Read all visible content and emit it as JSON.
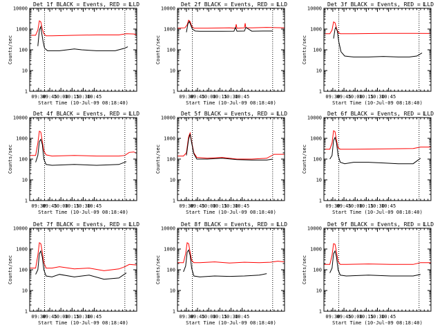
{
  "chart_data": [
    {
      "type": "line",
      "title": "Det 1f BLACK = Events, RED = LLD",
      "corner_mark": "L",
      "xlabel": "Start Time (10-Jul-09 08:18:40)",
      "ylabel": "Counts/sec",
      "yscale": "log",
      "ylim": [
        1,
        10000
      ],
      "xlim": [
        0,
        144
      ],
      "x_tick_labels": [
        "09:30",
        "09:45",
        "10:00",
        "10:15",
        "10:30",
        "10:45"
      ],
      "x_tick_values": [
        12,
        27,
        42,
        57,
        72,
        87
      ],
      "y_tick_labels": [
        "1",
        "10",
        "100",
        "1000",
        "10000"
      ],
      "y_tick_values": [
        1,
        10,
        100,
        1000,
        10000
      ],
      "vlines": [
        20,
        128
      ],
      "series": [
        {
          "color": "#ff0000",
          "x": [
            0,
            8,
            11,
            13,
            15,
            17,
            19,
            22,
            30,
            60,
            90,
            120,
            130,
            140,
            144
          ],
          "y": [
            500,
            500,
            900,
            2500,
            2200,
            1000,
            600,
            470,
            470,
            500,
            520,
            520,
            600,
            580,
            520
          ]
        },
        {
          "color": "#000000",
          "x": [
            11,
            13,
            15,
            16,
            18,
            20,
            24,
            40,
            60,
            70,
            90,
            115,
            128,
            132
          ],
          "y": [
            150,
            900,
            1300,
            700,
            250,
            120,
            90,
            90,
            110,
            100,
            90,
            90,
            120,
            140
          ]
        }
      ]
    },
    {
      "type": "line",
      "title": "Det 2f BLACK = Events, RED = LLD",
      "corner_mark": "L",
      "xlabel": "Start Time (10-Jul-09 08:18:40)",
      "ylabel": "Counts/sec",
      "yscale": "log",
      "ylim": [
        1,
        10000
      ],
      "xlim": [
        0,
        144
      ],
      "x_tick_labels": [
        "09:30",
        "09:45",
        "10:00",
        "10:15",
        "10:30",
        "10:45"
      ],
      "x_tick_values": [
        12,
        27,
        42,
        57,
        72,
        87
      ],
      "y_tick_labels": [
        "1",
        "10",
        "100",
        "1000",
        "10000"
      ],
      "y_tick_values": [
        1,
        10,
        100,
        1000,
        10000
      ],
      "vlines": [
        20,
        128
      ],
      "series": [
        {
          "color": "#ff0000",
          "x": [
            0,
            10,
            13,
            15,
            17,
            19,
            22,
            40,
            70,
            78,
            79,
            80,
            90,
            91,
            92,
            100,
            120,
            144
          ],
          "y": [
            1100,
            1150,
            1600,
            2700,
            2300,
            1400,
            1100,
            1100,
            1150,
            1100,
            1700,
            1100,
            1150,
            1900,
            1150,
            1150,
            1200,
            1150
          ]
        },
        {
          "color": "#000000",
          "x": [
            12,
            14,
            16,
            18,
            20,
            24,
            30,
            60,
            76,
            78,
            80,
            90,
            92,
            100,
            115,
            128
          ],
          "y": [
            700,
            1800,
            2300,
            1500,
            1000,
            800,
            780,
            780,
            790,
            1200,
            790,
            800,
            1200,
            790,
            800,
            800
          ]
        }
      ]
    },
    {
      "type": "line",
      "title": "Det 3f BLACK = Events, RED = LLD",
      "corner_mark": "L",
      "xlabel": "Start Time (10-Jul-09 08:18:40)",
      "ylabel": "Counts/sec",
      "yscale": "log",
      "ylim": [
        1,
        10000
      ],
      "xlim": [
        0,
        144
      ],
      "x_tick_labels": [
        "09:30",
        "09:45",
        "10:00",
        "10:15",
        "10:30",
        "10:45"
      ],
      "x_tick_values": [
        12,
        27,
        42,
        57,
        72,
        87
      ],
      "y_tick_labels": [
        "1",
        "10",
        "100",
        "1000",
        "10000"
      ],
      "y_tick_values": [
        1,
        10,
        100,
        1000,
        10000
      ],
      "vlines": [
        20,
        128
      ],
      "series": [
        {
          "color": "#ff0000",
          "x": [
            0,
            8,
            11,
            13,
            15,
            17,
            19,
            22,
            40,
            80,
            120,
            144
          ],
          "y": [
            600,
            600,
            900,
            2200,
            2000,
            1100,
            700,
            600,
            600,
            620,
            620,
            610
          ]
        },
        {
          "color": "#000000",
          "x": [
            13,
            15,
            16,
            18,
            20,
            23,
            28,
            40,
            60,
            80,
            100,
            115,
            125,
            132
          ],
          "y": [
            350,
            1000,
            1200,
            800,
            250,
            80,
            50,
            45,
            45,
            48,
            45,
            45,
            50,
            70
          ]
        }
      ]
    },
    {
      "type": "line",
      "title": "Det 4f BLACK = Events, RED = LLD",
      "corner_mark": "L",
      "xlabel": "Start Time (10-Jul-09 08:18:40)",
      "ylabel": "Counts/sec",
      "yscale": "log",
      "ylim": [
        1,
        10000
      ],
      "xlim": [
        0,
        144
      ],
      "x_tick_labels": [
        "09:30",
        "09:45",
        "10:00",
        "10:15",
        "10:30",
        "10:45"
      ],
      "x_tick_values": [
        12,
        27,
        42,
        57,
        72,
        87
      ],
      "y_tick_labels": [
        "1",
        "10",
        "100",
        "1000",
        "10000"
      ],
      "y_tick_values": [
        1,
        10,
        100,
        1000,
        10000
      ],
      "vlines": [
        20,
        128
      ],
      "series": [
        {
          "color": "#ff0000",
          "x": [
            0,
            8,
            11,
            13,
            15,
            17,
            19,
            22,
            30,
            60,
            90,
            120,
            128,
            134,
            140,
            144
          ],
          "y": [
            150,
            150,
            600,
            2200,
            2000,
            700,
            250,
            160,
            140,
            150,
            140,
            140,
            150,
            210,
            220,
            190
          ]
        },
        {
          "color": "#000000",
          "x": [
            8,
            11,
            13,
            15,
            17,
            19,
            22,
            30,
            60,
            90,
            120,
            130
          ],
          "y": [
            70,
            150,
            700,
            900,
            500,
            100,
            55,
            50,
            55,
            50,
            55,
            75
          ]
        }
      ]
    },
    {
      "type": "line",
      "title": "Det 5f BLACK = Events, RED = LLD",
      "corner_mark": "L",
      "xlabel": "Start Time (10-Jul-09 08:18:40)",
      "ylabel": "Counts/sec",
      "yscale": "log",
      "ylim": [
        1,
        10000
      ],
      "xlim": [
        0,
        144
      ],
      "x_tick_labels": [
        "09:30",
        "09:45",
        "10:00",
        "10:15",
        "10:30",
        "10:45"
      ],
      "x_tick_values": [
        12,
        27,
        42,
        57,
        72,
        87
      ],
      "y_tick_labels": [
        "1",
        "10",
        "100",
        "1000",
        "10000"
      ],
      "y_tick_values": [
        1,
        10,
        100,
        1000,
        10000
      ],
      "vlines": [
        20,
        128
      ],
      "series": [
        {
          "color": "#ff0000",
          "x": [
            0,
            8,
            12,
            15,
            17,
            19,
            22,
            26,
            40,
            60,
            80,
            100,
            120,
            130,
            144
          ],
          "y": [
            140,
            140,
            200,
            1200,
            1800,
            700,
            200,
            120,
            110,
            120,
            100,
            100,
            110,
            170,
            170
          ]
        },
        {
          "color": "#000000",
          "x": [
            12,
            15,
            17,
            19,
            22,
            26,
            40,
            60,
            80,
            100,
            120,
            128
          ],
          "y": [
            150,
            900,
            1600,
            600,
            180,
            100,
            100,
            110,
            95,
            90,
            90,
            100
          ]
        }
      ]
    },
    {
      "type": "line",
      "title": "Det 6f BLACK = Events, RED = LLD",
      "corner_mark": "L",
      "xlabel": "Start Time (10-Jul-09 08:18:40)",
      "ylabel": "Counts/sec",
      "yscale": "log",
      "ylim": [
        1,
        10000
      ],
      "xlim": [
        0,
        144
      ],
      "x_tick_labels": [
        "09:30",
        "09:45",
        "10:00",
        "10:15",
        "10:30",
        "10:45"
      ],
      "x_tick_values": [
        12,
        27,
        42,
        57,
        72,
        87
      ],
      "y_tick_labels": [
        "1",
        "10",
        "100",
        "1000",
        "10000"
      ],
      "y_tick_values": [
        1,
        10,
        100,
        1000,
        10000
      ],
      "vlines": [
        20,
        128
      ],
      "series": [
        {
          "color": "#ff0000",
          "x": [
            0,
            8,
            11,
            13,
            15,
            17,
            19,
            22,
            40,
            80,
            120,
            130,
            144
          ],
          "y": [
            300,
            300,
            600,
            2300,
            2100,
            800,
            350,
            300,
            300,
            310,
            320,
            380,
            380
          ]
        },
        {
          "color": "#000000",
          "x": [
            8,
            11,
            13,
            15,
            17,
            19,
            22,
            28,
            40,
            60,
            80,
            100,
            120,
            130
          ],
          "y": [
            100,
            150,
            800,
            1100,
            600,
            150,
            70,
            60,
            70,
            70,
            65,
            60,
            60,
            110
          ]
        }
      ]
    },
    {
      "type": "line",
      "title": "Det 7f BLACK = Events, RED = LLD",
      "corner_mark": "L",
      "xlabel": "Start Time (10-Jul-09 08:18:40)",
      "ylabel": "Counts/sec",
      "yscale": "log",
      "ylim": [
        1,
        10000
      ],
      "xlim": [
        0,
        144
      ],
      "x_tick_labels": [
        "09:30",
        "09:45",
        "10:00",
        "10:15",
        "10:30",
        "10:45"
      ],
      "x_tick_values": [
        12,
        27,
        42,
        57,
        72,
        87
      ],
      "y_tick_labels": [
        "1",
        "10",
        "100",
        "1000",
        "10000"
      ],
      "y_tick_values": [
        1,
        10,
        100,
        1000,
        10000
      ],
      "vlines": [
        20,
        128
      ],
      "series": [
        {
          "color": "#ff0000",
          "x": [
            0,
            8,
            11,
            13,
            15,
            17,
            19,
            22,
            30,
            40,
            60,
            80,
            100,
            120,
            128,
            134,
            144
          ],
          "y": [
            120,
            120,
            500,
            2000,
            1800,
            700,
            220,
            120,
            120,
            140,
            110,
            120,
            90,
            110,
            140,
            180,
            170
          ]
        },
        {
          "color": "#000000",
          "x": [
            8,
            11,
            13,
            15,
            17,
            19,
            22,
            30,
            40,
            60,
            80,
            100,
            120,
            130
          ],
          "y": [
            60,
            100,
            600,
            800,
            400,
            100,
            50,
            45,
            60,
            45,
            55,
            35,
            40,
            70
          ]
        }
      ]
    },
    {
      "type": "line",
      "title": "Det 8f BLACK = Events, RED = LLD",
      "corner_mark": "L",
      "xlabel": "Start Time (10-Jul-09 08:18:40)",
      "ylabel": "Counts/sec",
      "yscale": "log",
      "ylim": [
        1,
        10000
      ],
      "xlim": [
        0,
        144
      ],
      "x_tick_labels": [
        "09:30",
        "09:45",
        "10:00",
        "10:15",
        "10:30",
        "10:45"
      ],
      "x_tick_values": [
        12,
        27,
        42,
        57,
        72,
        87
      ],
      "y_tick_labels": [
        "1",
        "10",
        "100",
        "1000",
        "10000"
      ],
      "y_tick_values": [
        1,
        10,
        100,
        1000,
        10000
      ],
      "vlines": [
        20,
        128
      ],
      "series": [
        {
          "color": "#ff0000",
          "x": [
            0,
            8,
            11,
            13,
            15,
            17,
            19,
            22,
            30,
            50,
            70,
            90,
            110,
            125,
            135,
            144
          ],
          "y": [
            220,
            220,
            600,
            2000,
            1800,
            700,
            280,
            220,
            220,
            240,
            210,
            230,
            220,
            230,
            260,
            240
          ]
        },
        {
          "color": "#000000",
          "x": [
            8,
            11,
            13,
            15,
            17,
            19,
            22,
            30,
            50,
            70,
            90,
            110,
            120
          ],
          "y": [
            80,
            150,
            700,
            900,
            500,
            120,
            50,
            45,
            50,
            48,
            50,
            55,
            65
          ]
        }
      ]
    },
    {
      "type": "line",
      "title": "Det 9f BLACK = Events, RED = LLD",
      "corner_mark": "L",
      "xlabel": "Start Time (10-Jul-09 08:18:40)",
      "ylabel": "Counts/sec",
      "yscale": "log",
      "ylim": [
        1,
        10000
      ],
      "xlim": [
        0,
        144
      ],
      "x_tick_labels": [
        "09:30",
        "09:45",
        "10:00",
        "10:15",
        "10:30",
        "10:45"
      ],
      "x_tick_values": [
        12,
        27,
        42,
        57,
        72,
        87
      ],
      "y_tick_labels": [
        "1",
        "10",
        "100",
        "1000",
        "10000"
      ],
      "y_tick_values": [
        1,
        10,
        100,
        1000,
        10000
      ],
      "vlines": [
        20,
        128
      ],
      "series": [
        {
          "color": "#ff0000",
          "x": [
            0,
            8,
            11,
            13,
            15,
            17,
            19,
            22,
            30,
            60,
            90,
            120,
            130,
            144
          ],
          "y": [
            180,
            180,
            500,
            1800,
            1700,
            700,
            250,
            180,
            180,
            190,
            180,
            180,
            220,
            220
          ]
        },
        {
          "color": "#000000",
          "x": [
            8,
            11,
            13,
            15,
            17,
            19,
            22,
            30,
            60,
            90,
            120,
            130
          ],
          "y": [
            70,
            120,
            600,
            800,
            400,
            100,
            55,
            50,
            55,
            50,
            50,
            60
          ]
        }
      ]
    }
  ]
}
